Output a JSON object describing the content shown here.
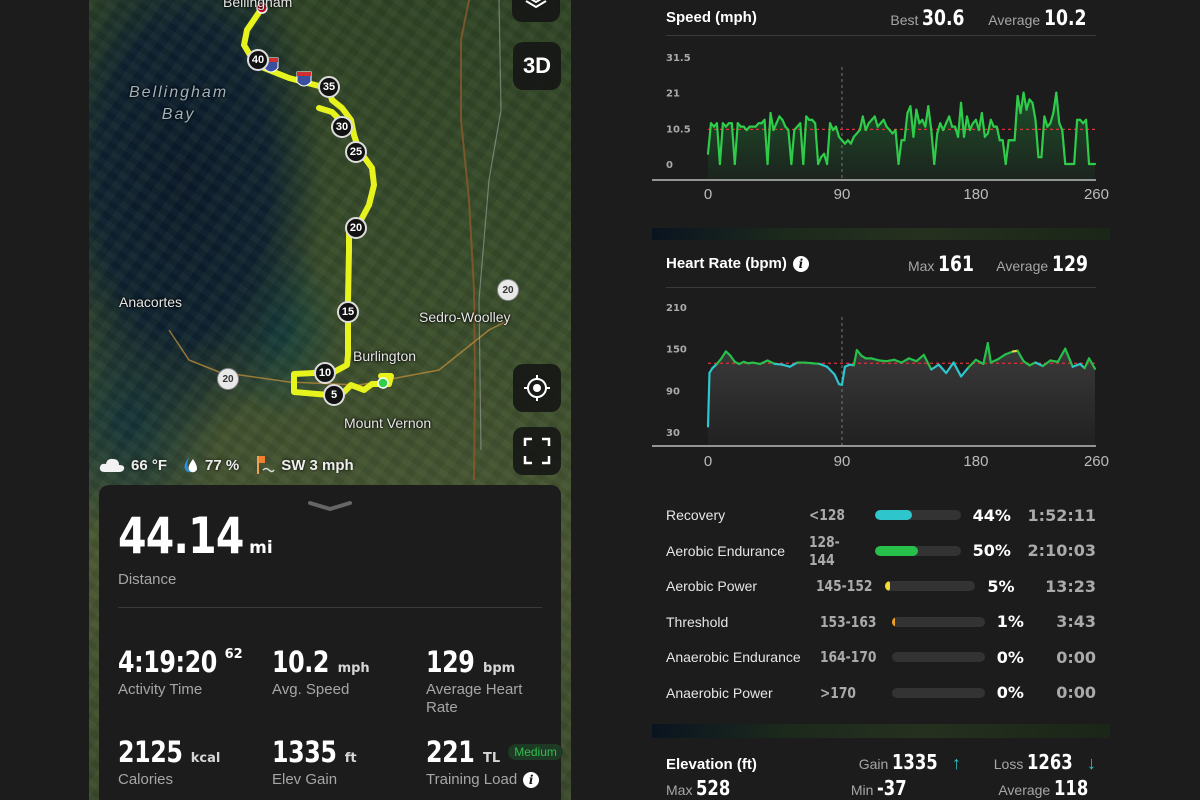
{
  "map": {
    "labels": {
      "bellingham": "Bellingham",
      "bay_line1": "Bellingham",
      "bay_line2": "Bay",
      "anacortes": "Anacortes",
      "sedro_woolley": "Sedro-Woolley",
      "burlington": "Burlington",
      "mount_vernon": "Mount Vernon"
    },
    "mile_markers": [
      "40",
      "35",
      "30",
      "25",
      "20",
      "15",
      "10",
      "5"
    ],
    "highway_shields": [
      "20",
      "20"
    ],
    "route_color": "#e6f31c",
    "start_color": "#2fd14a",
    "end_color": "#e8132a",
    "buttons": {
      "layers": "layers-icon",
      "three_d": "3D",
      "locate": "locate-icon",
      "fullscreen": "fullscreen-icon"
    },
    "weather": {
      "temperature": "66 °F",
      "humidity": "77 %",
      "wind": "SW 3 mph"
    }
  },
  "summary": {
    "distance": {
      "value": "44.14",
      "unit": "mi",
      "label": "Distance"
    },
    "stats": [
      {
        "value": "4:19:20",
        "sup": "62",
        "unit": "",
        "label": "Activity Time"
      },
      {
        "value": "10.2",
        "unit": "mph",
        "label": "Avg. Speed"
      },
      {
        "value": "129",
        "unit": "bpm",
        "label": "Average Heart Rate"
      },
      {
        "value": "2125",
        "unit": "kcal",
        "label": "Calories"
      },
      {
        "value": "1335",
        "unit": "ft",
        "label": "Elev Gain"
      },
      {
        "value": "221",
        "unit": "TL",
        "badge": "Medium",
        "label": "Training Load"
      }
    ]
  },
  "speed_card": {
    "title": "Speed (mph)",
    "best_label": "Best",
    "best_value": "30.6",
    "avg_label": "Average",
    "avg_value": "10.2"
  },
  "hr_card": {
    "title": "Heart Rate (bpm)",
    "max_label": "Max",
    "max_value": "161",
    "avg_label": "Average",
    "avg_value": "129",
    "zones": [
      {
        "name": "Recovery",
        "range": "<128",
        "pct": "44%",
        "pct_num": 44,
        "time": "1:52:11",
        "color": "#2ec6cc"
      },
      {
        "name": "Aerobic Endurance",
        "range": "128-144",
        "pct": "50%",
        "pct_num": 50,
        "time": "2:10:03",
        "color": "#27c04a"
      },
      {
        "name": "Aerobic Power",
        "range": "145-152",
        "pct": "5%",
        "pct_num": 5,
        "time": "13:23",
        "color": "#f2dc3a"
      },
      {
        "name": "Threshold",
        "range": "153-163",
        "pct": "1%",
        "pct_num": 1,
        "time": "3:43",
        "color": "#f0a020"
      },
      {
        "name": "Anaerobic Endurance",
        "range": "164-170",
        "pct": "0%",
        "pct_num": 0,
        "time": "0:00",
        "color": "#e8502a"
      },
      {
        "name": "Anaerobic Power",
        "range": ">170",
        "pct": "0%",
        "pct_num": 0,
        "time": "0:00",
        "color": "#d42a2a"
      }
    ]
  },
  "elevation_card": {
    "title": "Elevation (ft)",
    "gain_label": "Gain",
    "gain_value": "1335",
    "loss_label": "Loss",
    "loss_value": "1263",
    "max_label": "Max",
    "max_value": "528",
    "min_label": "Min",
    "min_value": "-37",
    "avg_label": "Average",
    "avg_value": "118"
  },
  "chart_data": [
    {
      "type": "area",
      "title": "Speed (mph)",
      "xlabel": "",
      "ylabel": "mph",
      "x_ticks": [
        0,
        90,
        180,
        260
      ],
      "y_ticks": [
        0,
        10.5,
        21,
        31.5
      ],
      "ylim": [
        0,
        31.5
      ],
      "xlim": [
        0,
        260
      ],
      "average_line": 10.2,
      "average_line_color": "#e0303a",
      "series_color": "#2ecc4a",
      "marker_x": 90,
      "x": [
        0,
        2,
        4,
        6,
        8,
        10,
        12,
        14,
        16,
        18,
        20,
        22,
        24,
        26,
        28,
        30,
        32,
        34,
        36,
        38,
        40,
        42,
        44,
        46,
        48,
        50,
        52,
        54,
        56,
        58,
        60,
        62,
        64,
        66,
        68,
        70,
        72,
        74,
        76,
        78,
        80,
        82,
        84,
        86,
        88,
        90,
        92,
        94,
        96,
        98,
        100,
        102,
        104,
        106,
        108,
        110,
        112,
        114,
        116,
        118,
        120,
        122,
        124,
        126,
        128,
        130,
        132,
        134,
        136,
        138,
        140,
        142,
        144,
        146,
        148,
        150,
        152,
        154,
        156,
        158,
        160,
        162,
        164,
        166,
        168,
        170,
        172,
        174,
        176,
        178,
        180,
        182,
        184,
        186,
        188,
        190,
        192,
        194,
        196,
        198,
        200,
        202,
        204,
        206,
        208,
        210,
        212,
        214,
        216,
        218,
        220,
        222,
        224,
        226,
        228,
        230,
        232,
        234,
        236,
        238,
        240,
        242,
        244,
        246,
        248,
        250,
        252,
        254,
        256,
        258,
        260
      ],
      "values": [
        3,
        12,
        11,
        12,
        0,
        12,
        11,
        12,
        12,
        0,
        12,
        11,
        11,
        10,
        11,
        11,
        11,
        12,
        12,
        13,
        0,
        15,
        10,
        12,
        14,
        13,
        11,
        10,
        0,
        10,
        11,
        12,
        0,
        14,
        13,
        13,
        12,
        0,
        2,
        3,
        0,
        12,
        10,
        11,
        8,
        7,
        6,
        7,
        6,
        8,
        9,
        10,
        14,
        10,
        12,
        13,
        14,
        11,
        12,
        13,
        11,
        10,
        9,
        10,
        0,
        7,
        7,
        15,
        17,
        8,
        16,
        12,
        13,
        11,
        17,
        10,
        0,
        9,
        12,
        10,
        12,
        14,
        11,
        11,
        8,
        18,
        8,
        14,
        10,
        12,
        13,
        10,
        15,
        8,
        9,
        13,
        11,
        11,
        7,
        7,
        0,
        7,
        7,
        7,
        20,
        15,
        21,
        16,
        19,
        18,
        13,
        2,
        2,
        14,
        11,
        12,
        15,
        21,
        12,
        10,
        0,
        0,
        0,
        0,
        13,
        13,
        12,
        13,
        0,
        0,
        0
      ],
      "values_note": "approximate, read from chart"
    },
    {
      "type": "area",
      "title": "Heart Rate (bpm)",
      "xlabel": "",
      "ylabel": "bpm",
      "x_ticks": [
        0,
        90,
        180,
        260
      ],
      "y_ticks": [
        30,
        90,
        150,
        210
      ],
      "ylim": [
        30,
        210
      ],
      "xlim": [
        0,
        260
      ],
      "average_line": 129,
      "average_line_color": "#e0303a",
      "marker_x": 90,
      "zone_colors": {
        "recovery": "#2ec6cc",
        "aerobic_endurance": "#27c04a",
        "aerobic_power": "#f2dc3a"
      },
      "x": [
        0,
        1,
        3,
        6,
        9,
        12,
        15,
        18,
        21,
        24,
        27,
        30,
        35,
        40,
        45,
        50,
        55,
        60,
        65,
        70,
        75,
        80,
        85,
        88,
        90,
        92,
        95,
        98,
        100,
        103,
        106,
        110,
        115,
        120,
        125,
        130,
        135,
        140,
        145,
        150,
        155,
        160,
        165,
        170,
        175,
        180,
        185,
        188,
        190,
        195,
        200,
        205,
        208,
        212,
        216,
        220,
        225,
        230,
        235,
        240,
        245,
        250,
        253,
        256,
        260
      ],
      "values": [
        38,
        115,
        122,
        128,
        136,
        146,
        140,
        131,
        128,
        131,
        129,
        130,
        128,
        133,
        128,
        127,
        124,
        130,
        130,
        129,
        128,
        124,
        113,
        99,
        98,
        124,
        127,
        126,
        148,
        140,
        136,
        136,
        133,
        132,
        134,
        130,
        136,
        132,
        141,
        120,
        127,
        115,
        130,
        110,
        123,
        134,
        128,
        158,
        130,
        135,
        142,
        146,
        147,
        132,
        126,
        130,
        125,
        133,
        131,
        150,
        124,
        128,
        122,
        136,
        121
      ],
      "values_note": "approximate, read from chart"
    }
  ]
}
